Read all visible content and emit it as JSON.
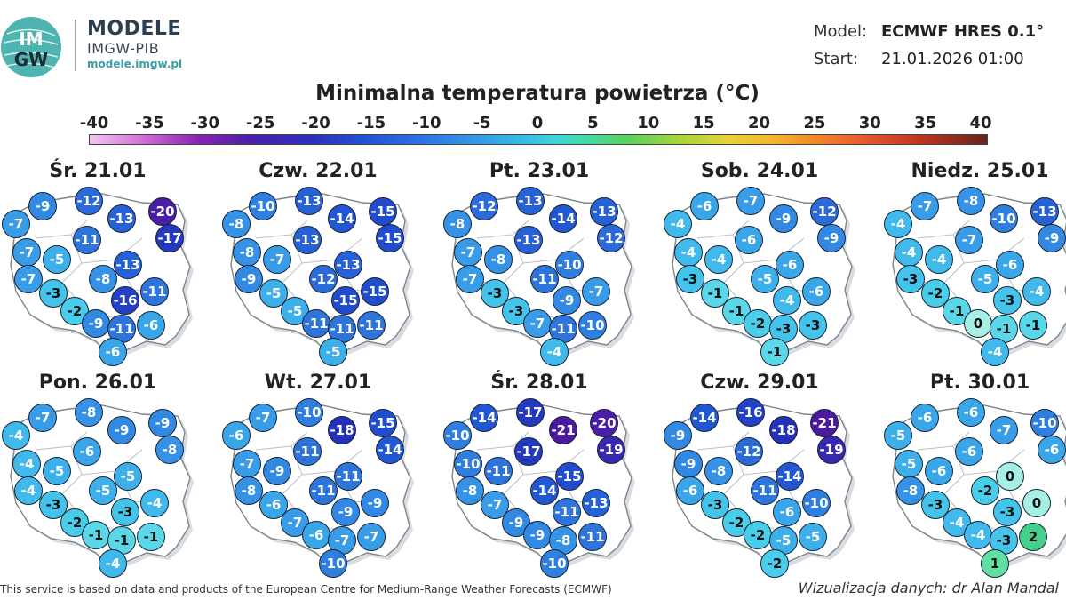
{
  "brand": {
    "logo_text_top": "IM",
    "logo_text_bottom": "GW",
    "title": "MODELE",
    "subtitle": "IMGW-PIB",
    "url": "modele.imgw.pl"
  },
  "meta": {
    "model_label": "Model:",
    "model_value": "ECMWF HRES 0.1°",
    "start_label": "Start:",
    "start_value": "21.01.2026 01:00"
  },
  "title": "Minimalna temperatura powietrza (°C)",
  "colorbar": {
    "ticks": [
      "-40",
      "-35",
      "-30",
      "-25",
      "-20",
      "-15",
      "-10",
      "-5",
      "0",
      "5",
      "10",
      "15",
      "20",
      "25",
      "30",
      "35",
      "40"
    ],
    "min": -40,
    "max": 40
  },
  "panels": [
    {
      "date": "Śr. 21.01",
      "values": [
        -9,
        -12,
        -20,
        -7,
        -13,
        -17,
        -11,
        -7,
        -5,
        -13,
        -7,
        -8,
        -3,
        -16,
        -11,
        -2,
        -9,
        -11,
        -6,
        -6
      ]
    },
    {
      "date": "Czw. 22.01",
      "values": [
        -10,
        -13,
        -15,
        -8,
        -14,
        -15,
        -13,
        -8,
        -7,
        -13,
        -9,
        -12,
        -5,
        -15,
        -15,
        -5,
        -11,
        -11,
        -11,
        -5
      ]
    },
    {
      "date": "Pt. 23.01",
      "values": [
        -12,
        -13,
        -13,
        -8,
        -14,
        -12,
        -13,
        -7,
        -8,
        -10,
        -7,
        -11,
        -3,
        -9,
        -7,
        -3,
        -7,
        -11,
        -10,
        -4
      ]
    },
    {
      "date": "Sob. 24.01",
      "values": [
        -6,
        -7,
        -12,
        -4,
        -9,
        -9,
        -6,
        -4,
        -4,
        -6,
        -3,
        -5,
        -1,
        -4,
        -6,
        -1,
        -2,
        -3,
        -3,
        -1
      ]
    },
    {
      "date": "Niedz. 25.01",
      "values": [
        -7,
        -8,
        -13,
        -4,
        -10,
        -9,
        -7,
        -4,
        -4,
        -6,
        -3,
        -5,
        -2,
        -3,
        -4,
        -1,
        0,
        -1,
        -1,
        -4
      ]
    },
    {
      "date": "Pon. 26.01",
      "values": [
        -7,
        -8,
        -9,
        -4,
        -9,
        -8,
        -6,
        -4,
        -5,
        -5,
        -4,
        -5,
        -3,
        -3,
        -4,
        -2,
        -1,
        -1,
        -1,
        -4
      ]
    },
    {
      "date": "Wt. 27.01",
      "values": [
        -7,
        -10,
        -15,
        -6,
        -18,
        -14,
        -11,
        -7,
        -9,
        -11,
        -8,
        -11,
        -6,
        -9,
        -9,
        -7,
        -6,
        -7,
        -7,
        -10
      ]
    },
    {
      "date": "Śr. 28.01",
      "values": [
        -14,
        -17,
        -20,
        -10,
        -21,
        -19,
        -17,
        -10,
        -11,
        -15,
        -8,
        -14,
        -7,
        -11,
        -13,
        -9,
        -9,
        -8,
        -11,
        -10
      ]
    },
    {
      "date": "Czw. 29.01",
      "values": [
        -14,
        -16,
        -21,
        -9,
        -18,
        -19,
        -12,
        -9,
        -8,
        -14,
        -6,
        -11,
        -3,
        -6,
        -10,
        -2,
        -2,
        -5,
        -5,
        -2
      ]
    },
    {
      "date": "Pt. 30.01",
      "values": [
        -6,
        -6,
        -10,
        -5,
        -7,
        -6,
        -6,
        -5,
        -6,
        0,
        -8,
        -2,
        -3,
        -3,
        0,
        -4,
        -4,
        -3,
        2,
        1
      ]
    }
  ],
  "footer": {
    "left": "This service is based on data and products of the European Centre for Medium-Range Weather Forecasts (ECMWF)",
    "right": "Wizualizacja danych: dr Alan Mandal"
  }
}
